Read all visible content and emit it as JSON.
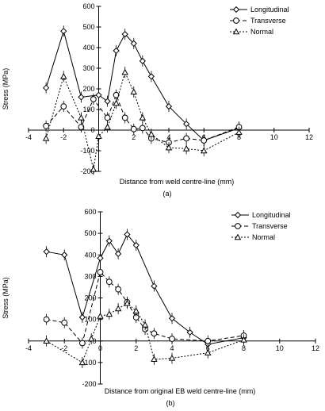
{
  "chart_data": [
    {
      "type": "line",
      "panel_label": "(a)",
      "xlabel": "Distance from weld centre-line (mm)",
      "ylabel": "Stress (MPa)",
      "xlim": [
        -4,
        12
      ],
      "ylim": [
        -200,
        600
      ],
      "x_ticks": [
        "-4",
        "-2",
        "0",
        "2",
        "4",
        "6",
        "8",
        "10",
        "12"
      ],
      "y_ticks": [
        "-200",
        "-100",
        "0",
        "100",
        "200",
        "300",
        "400",
        "500",
        "600"
      ],
      "grid": false,
      "legend_position": "top-right",
      "series": [
        {
          "name": "Longitudinal",
          "marker": "diamond",
          "dash": "solid",
          "x": [
            -3,
            -2,
            -1,
            0,
            0.5,
            1,
            1.5,
            2,
            2.5,
            3,
            4,
            5,
            6,
            8
          ],
          "y": [
            205,
            480,
            160,
            170,
            140,
            385,
            465,
            420,
            335,
            260,
            115,
            30,
            -50,
            10
          ]
        },
        {
          "name": "Transverse",
          "marker": "circle",
          "dash": "dashed",
          "x": [
            -3,
            -2,
            -1,
            -0.3,
            0.5,
            1,
            1.5,
            2,
            2.5,
            3,
            4,
            5,
            6,
            8
          ],
          "y": [
            20,
            115,
            15,
            150,
            60,
            170,
            60,
            5,
            10,
            -40,
            -60,
            -40,
            -50,
            15
          ]
        },
        {
          "name": "Normal",
          "marker": "triangle",
          "dash": "dotted",
          "x": [
            -3,
            -2,
            -1,
            -0.3,
            0,
            0.5,
            1,
            1.5,
            2,
            2.5,
            3,
            4,
            5,
            6,
            8
          ],
          "y": [
            -40,
            260,
            60,
            -190,
            -30,
            15,
            130,
            280,
            185,
            60,
            -20,
            -85,
            -90,
            -100,
            -10
          ]
        }
      ]
    },
    {
      "type": "line",
      "panel_label": "(b)",
      "xlabel": "Distance from original EB weld centre-line (mm)",
      "ylabel": "Stress (MPa)",
      "xlim": [
        -4,
        12
      ],
      "ylim": [
        -200,
        600
      ],
      "x_ticks": [
        "-4",
        "-2",
        "0",
        "2",
        "4",
        "6",
        "8",
        "10",
        "12"
      ],
      "y_ticks": [
        "-200",
        "-100",
        "0",
        "100",
        "200",
        "300",
        "400",
        "500",
        "600"
      ],
      "grid": false,
      "legend_position": "top-right",
      "series": [
        {
          "name": "Longitudinal",
          "marker": "diamond",
          "dash": "solid",
          "x": [
            -3,
            -2,
            -1,
            0,
            0.5,
            1,
            1.5,
            2,
            3,
            4,
            5,
            6,
            8
          ],
          "y": [
            415,
            400,
            110,
            385,
            465,
            405,
            495,
            445,
            255,
            105,
            40,
            -15,
            15
          ]
        },
        {
          "name": "Transverse",
          "marker": "circle",
          "dash": "dashed",
          "x": [
            -3,
            -2,
            -1,
            0,
            0.5,
            1,
            1.5,
            2,
            2.5,
            3,
            4,
            6,
            8
          ],
          "y": [
            100,
            85,
            -10,
            320,
            275,
            240,
            180,
            110,
            55,
            35,
            10,
            0,
            25
          ]
        },
        {
          "name": "Normal",
          "marker": "triangle",
          "dash": "dotted",
          "x": [
            -3,
            -1,
            -0.5,
            0,
            0.5,
            1,
            1.5,
            2,
            2.5,
            3,
            4,
            6,
            8
          ],
          "y": [
            0,
            -100,
            10,
            115,
            125,
            150,
            175,
            140,
            75,
            -85,
            -80,
            -55,
            5
          ]
        }
      ]
    }
  ]
}
